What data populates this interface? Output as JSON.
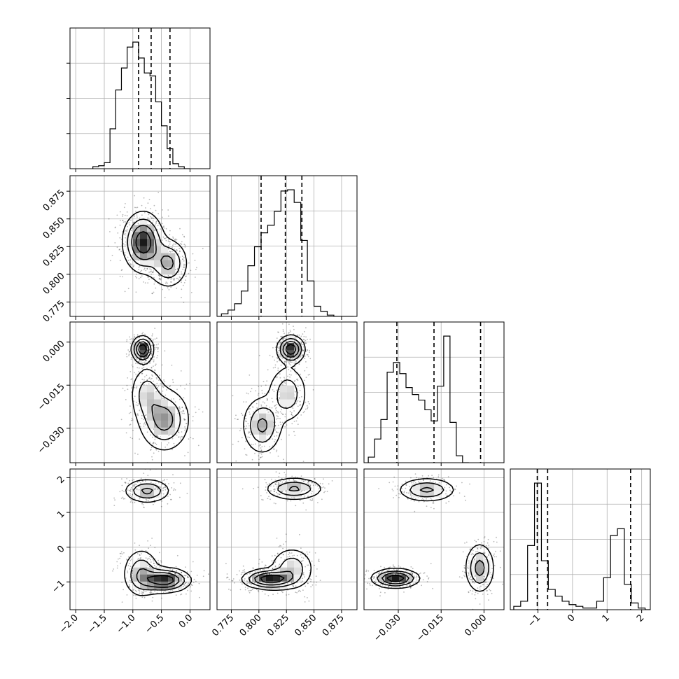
{
  "chart_data": {
    "type": "corner",
    "grid": true,
    "variables": [
      {
        "range": [
          -2.1,
          0.35
        ],
        "ticks": [
          -2.0,
          -1.5,
          -1.0,
          -0.5,
          0.0
        ],
        "tick_labels": [
          "−2.0",
          "−1.5",
          "−1.0",
          "−0.5",
          "0.0"
        ],
        "quantiles": [
          -0.9,
          -0.68,
          -0.35
        ],
        "hist": {
          "edges_start": -1.7,
          "bin_width": 0.1,
          "counts": [
            0.02,
            0.03,
            0.06,
            0.4,
            0.79,
            1.01,
            1.22,
            1.27,
            1.11,
            0.96,
            0.93,
            0.67,
            0.43,
            0.2,
            0.05,
            0.02,
            0.0
          ]
        }
      },
      {
        "range": [
          0.762,
          0.889
        ],
        "ticks": [
          0.775,
          0.8,
          0.825,
          0.85,
          0.875
        ],
        "tick_labels": [
          "0.775",
          "0.800",
          "0.825",
          "0.850",
          "0.875"
        ],
        "quantiles": [
          0.802,
          0.824,
          0.839
        ],
        "hist": {
          "edges_start": 0.76,
          "bin_width": 0.006,
          "counts": [
            0.0,
            0.02,
            0.05,
            0.1,
            0.2,
            0.4,
            0.55,
            0.66,
            0.72,
            0.83,
            0.99,
            1.0,
            0.9,
            0.6,
            0.28,
            0.08,
            0.04,
            0.01,
            0.0,
            0.0,
            0.0
          ]
        }
      },
      {
        "range": [
          -0.042,
          0.007
        ],
        "ticks": [
          -0.03,
          -0.015,
          0.0
        ],
        "tick_labels": [
          "−0.030",
          "−0.015",
          "0.000"
        ],
        "quantiles": [
          -0.0305,
          -0.0175,
          -0.0012
        ],
        "hist": {
          "edges_start": -0.0405,
          "bin_width": 0.0022,
          "counts": [
            0.04,
            0.17,
            0.31,
            0.65,
            0.72,
            0.64,
            0.54,
            0.49,
            0.45,
            0.38,
            0.3,
            0.55,
            0.91,
            0.29,
            0.05,
            0.0
          ]
        }
      },
      {
        "range": [
          -1.8,
          2.25
        ],
        "ticks": [
          -1,
          0,
          1,
          2
        ],
        "tick_labels": [
          "−1",
          "0",
          "1",
          "2"
        ],
        "quantiles": [
          -1.02,
          -0.72,
          1.68
        ],
        "hist": {
          "edges_start": -1.7,
          "bin_width": 0.2,
          "counts": [
            0.02,
            0.05,
            0.38,
            0.75,
            0.29,
            0.12,
            0.08,
            0.05,
            0.03,
            0.02,
            0.01,
            0.01,
            0.05,
            0.19,
            0.44,
            0.48,
            0.15,
            0.04,
            0.01,
            0.0
          ]
        }
      }
    ],
    "row_tick_labels": {
      "1": {
        "ticks": [
          0.775,
          0.8,
          0.825,
          0.85,
          0.875
        ],
        "labels": [
          "0.775",
          "0.800",
          "0.825",
          "0.850",
          "0.875"
        ]
      },
      "2": {
        "ticks": [
          -0.03,
          -0.015,
          0.0
        ],
        "labels": [
          "−0.030",
          "−0.015",
          "0.000"
        ]
      },
      "3": {
        "ticks": [
          -1,
          0,
          1,
          2
        ],
        "labels": [
          "−1",
          "0",
          "1",
          "2"
        ]
      }
    },
    "contour_levels": 4,
    "panels_2d": [
      {
        "x": 0,
        "y": 1,
        "blobs": [
          {
            "mean": [
              -0.82,
              0.829
            ],
            "sd": [
              0.17,
              0.013
            ],
            "w": 0.7
          },
          {
            "mean": [
              -0.38,
              0.81
            ],
            "sd": [
              0.17,
              0.011
            ],
            "w": 0.4
          }
        ]
      },
      {
        "x": 0,
        "y": 2,
        "blobs": [
          {
            "mean": [
              -0.83,
              -0.0025
            ],
            "sd": [
              0.09,
              0.0022
            ],
            "w": 0.9
          },
          {
            "mean": [
              -0.45,
              -0.027
            ],
            "sd": [
              0.22,
              0.0055
            ],
            "w": 0.55
          },
          {
            "mean": [
              -0.75,
              -0.018
            ],
            "sd": [
              0.15,
              0.005
            ],
            "w": 0.35
          }
        ]
      },
      {
        "x": 1,
        "y": 2,
        "blobs": [
          {
            "mean": [
              0.829,
              -0.0025
            ],
            "sd": [
              0.006,
              0.0023
            ],
            "w": 0.9
          },
          {
            "mean": [
              0.803,
              -0.029
            ],
            "sd": [
              0.009,
              0.005
            ],
            "w": 0.5
          },
          {
            "mean": [
              0.826,
              -0.018
            ],
            "sd": [
              0.009,
              0.005
            ],
            "w": 0.4
          }
        ]
      },
      {
        "x": 0,
        "y": 3,
        "blobs": [
          {
            "mean": [
              -0.75,
              1.62
            ],
            "sd": [
              0.2,
              0.17
            ],
            "w": 0.45
          },
          {
            "mean": [
              -0.45,
              -0.95
            ],
            "sd": [
              0.22,
              0.17
            ],
            "w": 0.8
          },
          {
            "mean": [
              -0.85,
              -0.75
            ],
            "sd": [
              0.16,
              0.35
            ],
            "w": 0.4
          }
        ]
      },
      {
        "x": 1,
        "y": 3,
        "blobs": [
          {
            "mean": [
              0.832,
              1.68
            ],
            "sd": [
              0.013,
              0.16
            ],
            "w": 0.5
          },
          {
            "mean": [
              0.81,
              -0.92
            ],
            "sd": [
              0.012,
              0.14
            ],
            "w": 0.9
          },
          {
            "mean": [
              0.83,
              -0.6
            ],
            "sd": [
              0.01,
              0.3
            ],
            "w": 0.4
          }
        ]
      },
      {
        "x": 2,
        "y": 3,
        "blobs": [
          {
            "mean": [
              -0.02,
              1.65
            ],
            "sd": [
              0.005,
              0.17
            ],
            "w": 0.5
          },
          {
            "mean": [
              -0.031,
              -0.9
            ],
            "sd": [
              0.004,
              0.13
            ],
            "w": 0.9
          },
          {
            "mean": [
              -0.0015,
              -0.6
            ],
            "sd": [
              0.0025,
              0.35
            ],
            "w": 0.55
          }
        ]
      }
    ]
  }
}
